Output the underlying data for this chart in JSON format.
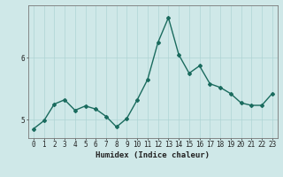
{
  "x": [
    0,
    1,
    2,
    3,
    4,
    5,
    6,
    7,
    8,
    9,
    10,
    11,
    12,
    13,
    14,
    15,
    16,
    17,
    18,
    19,
    20,
    21,
    22,
    23
  ],
  "y": [
    4.85,
    4.98,
    5.25,
    5.32,
    5.15,
    5.22,
    5.17,
    5.05,
    4.88,
    5.02,
    5.32,
    5.65,
    6.25,
    6.65,
    6.05,
    5.75,
    5.87,
    5.58,
    5.52,
    5.42,
    5.27,
    5.23,
    5.23,
    5.42
  ],
  "xlabel": "Humidex (Indice chaleur)",
  "yticks": [
    5,
    6
  ],
  "xlim": [
    -0.5,
    23.5
  ],
  "ylim": [
    4.7,
    6.85
  ],
  "line_color": "#1a6b5e",
  "bg_color": "#cfe8e8",
  "grid_color": "#aed4d4",
  "axis_color": "#777777",
  "tick_label_color": "#222222",
  "xlabel_color": "#222222",
  "xlabel_fontsize": 6.5,
  "tick_fontsize": 5.5,
  "marker": "D",
  "marker_size": 2.0,
  "line_width": 1.0
}
